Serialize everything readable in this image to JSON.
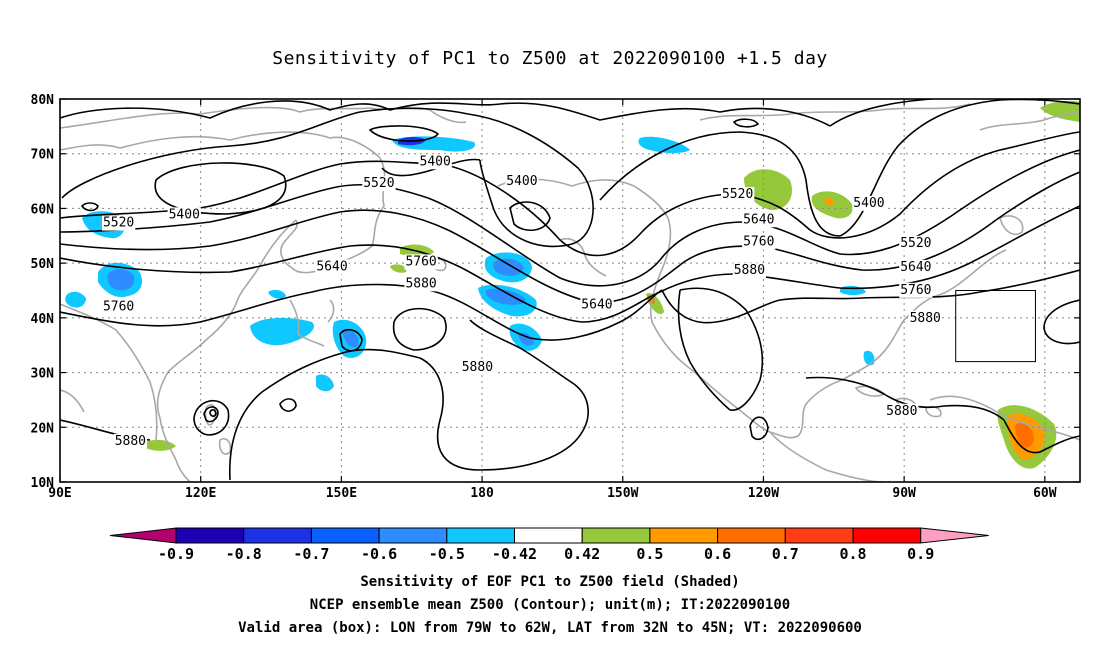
{
  "title": "Sensitivity of PC1 to Z500 at 2022090100 +1.5 day",
  "captions": {
    "line1": "Sensitivity of EOF PC1 to Z500 field (Shaded)",
    "line2": "NCEP ensemble mean Z500 (Contour); unit(m); IT:2022090100",
    "line3": "Valid area (box): LON from 79W to 62W, LAT from 32N to 45N; VT: 2022090600"
  },
  "axes": {
    "lon_ticks": [
      "90E",
      "120E",
      "150E",
      "180",
      "150W",
      "120W",
      "90W",
      "60W"
    ],
    "lat_ticks": [
      "80N",
      "70N",
      "60N",
      "50N",
      "40N",
      "30N",
      "20N",
      "10N"
    ]
  },
  "contour_labels": [
    {
      "text": "5400",
      "lon": 170,
      "lat": 68.8
    },
    {
      "text": "5400",
      "lon": -171.5,
      "lat": 65.2
    },
    {
      "text": "5400",
      "lon": 116.5,
      "lat": 59.1
    },
    {
      "text": "5400",
      "lon": -97.5,
      "lat": 61.2
    },
    {
      "text": "5520",
      "lon": 158,
      "lat": 64.8
    },
    {
      "text": "5520",
      "lon": 102.5,
      "lat": 57.6
    },
    {
      "text": "5520",
      "lon": -125.5,
      "lat": 62.8
    },
    {
      "text": "5520",
      "lon": -87.5,
      "lat": 53.9
    },
    {
      "text": "5640",
      "lon": 148,
      "lat": 49.6
    },
    {
      "text": "5640",
      "lon": -121,
      "lat": 58.2
    },
    {
      "text": "5640",
      "lon": -155.5,
      "lat": 42.6
    },
    {
      "text": "5640",
      "lon": -87.5,
      "lat": 49.5
    },
    {
      "text": "5760",
      "lon": 102.5,
      "lat": 42.3
    },
    {
      "text": "5760",
      "lon": 167,
      "lat": 50.5
    },
    {
      "text": "5760",
      "lon": -121,
      "lat": 54.1
    },
    {
      "text": "5760",
      "lon": -87.5,
      "lat": 45.3
    },
    {
      "text": "5880",
      "lon": 167,
      "lat": 46.5
    },
    {
      "text": "5880",
      "lon": 179,
      "lat": 31.2
    },
    {
      "text": "5880",
      "lon": -123,
      "lat": 48.9
    },
    {
      "text": "5880",
      "lon": -85.5,
      "lat": 40.2
    },
    {
      "text": "5880",
      "lon": -90.5,
      "lat": 23.2
    },
    {
      "text": "5880",
      "lon": 105,
      "lat": 17.7
    }
  ],
  "valid_box": {
    "lon_min": -79,
    "lon_max": -62,
    "lat_min": 32,
    "lat_max": 45
  },
  "colorbar": {
    "labels": [
      "-0.9",
      "-0.8",
      "-0.7",
      "-0.6",
      "-0.5",
      "-0.42",
      "0.42",
      "0.5",
      "0.6",
      "0.7",
      "0.8",
      "0.9"
    ],
    "colors": [
      "#1c00b4",
      "#1c32e6",
      "#0a5fff",
      "#2f8cff",
      "#0fc8ff",
      "#ffffff",
      "#96c83c",
      "#ff9b00",
      "#ff6f00",
      "#ff3c14",
      "#ff0000"
    ],
    "low_end_color": "#b4006e",
    "high_end_color": "#ff9ec3"
  },
  "colors": {
    "contour": "#000000",
    "coast": "#a8a8a8",
    "grid": "#888888"
  }
}
